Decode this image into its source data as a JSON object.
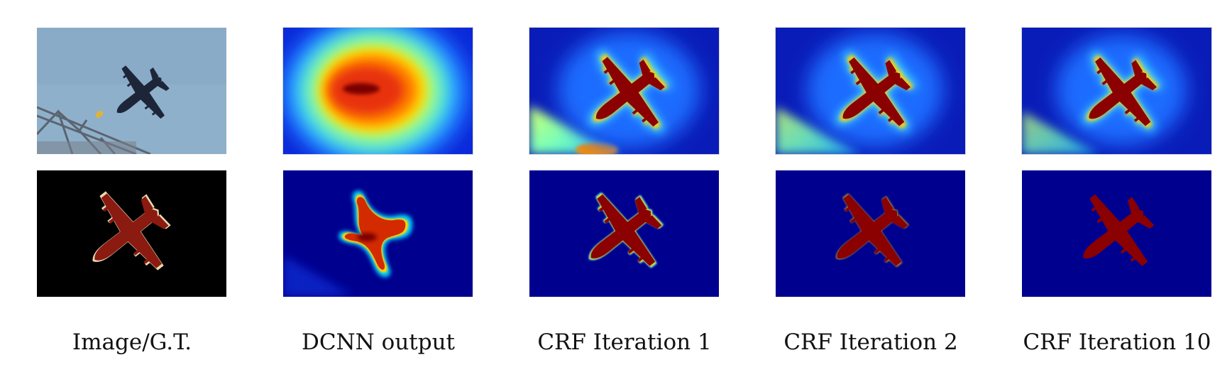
{
  "figure": {
    "columns": [
      {
        "caption": "Image/G.T."
      },
      {
        "caption": "DCNN output"
      },
      {
        "caption": "CRF Iteration 1"
      },
      {
        "caption": "CRF Iteration 2"
      },
      {
        "caption": "CRF Iteration 10"
      }
    ]
  },
  "colors": {
    "sky": "#8fb0ca",
    "map_background": "#00008f",
    "map_foreground": "#8b0000",
    "gt_background": "#000000",
    "gt_foreground": "#8b1a10",
    "gt_outline": "#e8d9b0"
  }
}
